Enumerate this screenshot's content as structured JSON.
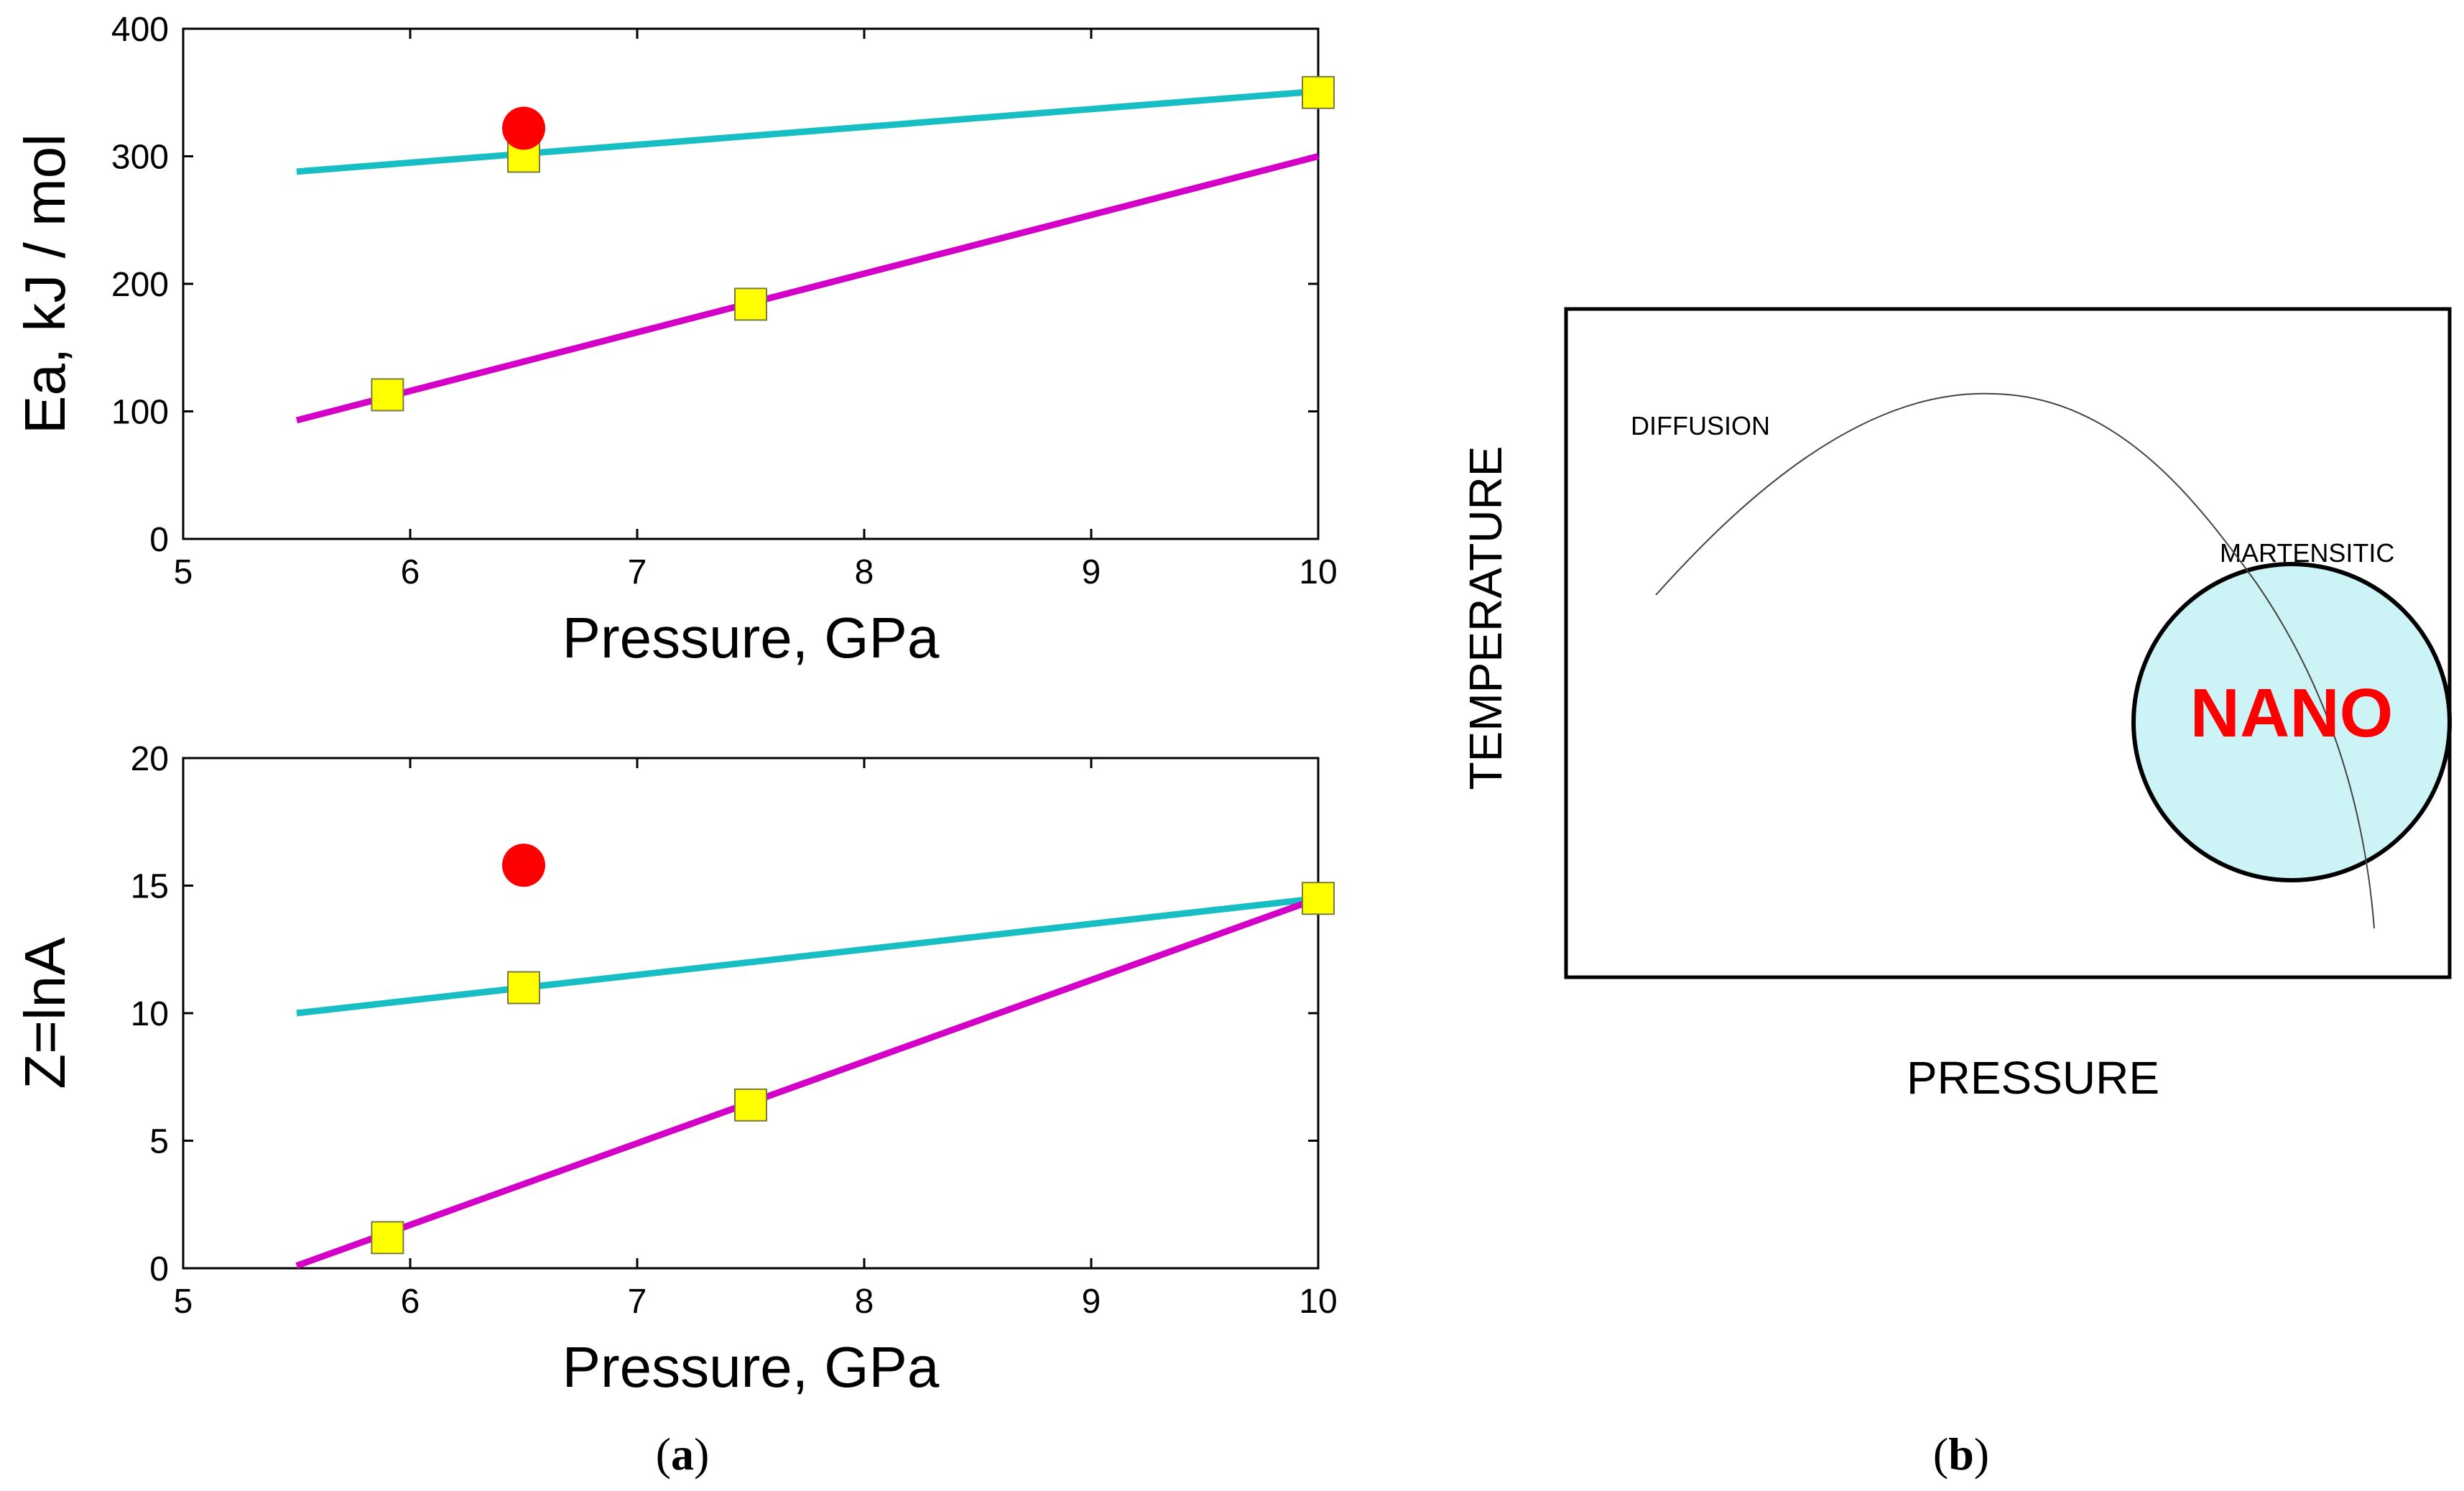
{
  "chart_data": [
    {
      "type": "scatter",
      "xlabel": "Pressure, GPa",
      "ylabel": "Ea, kJ / mol",
      "xlim": [
        5,
        10
      ],
      "ylim": [
        0,
        400
      ],
      "xticks": [
        "5",
        "6",
        "7",
        "8",
        "9",
        "10"
      ],
      "yticks": [
        "0",
        "100",
        "200",
        "300",
        "400"
      ],
      "series": [
        {
          "name": "cyan-fit",
          "kind": "line",
          "color": "#17BFC4",
          "x": [
            5.5,
            10
          ],
          "y": [
            288,
            351
          ]
        },
        {
          "name": "magenta-fit",
          "kind": "line",
          "color": "#D400C8",
          "x": [
            5.5,
            10
          ],
          "y": [
            93,
            300
          ]
        },
        {
          "name": "yellow-squares",
          "kind": "square",
          "color": "#FFFF00",
          "x": [
            5.9,
            6.5,
            7.5,
            10
          ],
          "y": [
            113,
            300,
            184,
            350
          ]
        },
        {
          "name": "red-circle",
          "kind": "circle",
          "color": "#FF0000",
          "x": [
            6.5
          ],
          "y": [
            322
          ]
        }
      ]
    },
    {
      "type": "scatter",
      "xlabel": "Pressure, GPa",
      "ylabel": "Z=lnA",
      "xlim": [
        5,
        10
      ],
      "ylim": [
        0,
        20
      ],
      "xticks": [
        "5",
        "6",
        "7",
        "8",
        "9",
        "10"
      ],
      "yticks": [
        "0",
        "5",
        "10",
        "15",
        "20"
      ],
      "series": [
        {
          "name": "cyan-fit",
          "kind": "line",
          "color": "#17BFC4",
          "x": [
            5.5,
            10
          ],
          "y": [
            10,
            14.5
          ]
        },
        {
          "name": "magenta-fit",
          "kind": "line",
          "color": "#D400C8",
          "x": [
            5.5,
            10
          ],
          "y": [
            0.1,
            14.5
          ]
        },
        {
          "name": "yellow-squares",
          "kind": "square",
          "color": "#FFFF00",
          "x": [
            5.9,
            6.5,
            7.5,
            10
          ],
          "y": [
            1.2,
            11,
            6.4,
            14.5
          ]
        },
        {
          "name": "red-circle",
          "kind": "circle",
          "color": "#FF0000",
          "x": [
            6.5
          ],
          "y": [
            15.8
          ]
        }
      ]
    }
  ],
  "diagram": {
    "xlabel": "PRESSURE",
    "ylabel": "TEMPERATURE",
    "label_diffusion": "DIFFUSION",
    "label_martensitic": "MARTENSITIC",
    "label_nano": "NANO"
  },
  "captions": {
    "a": "(a)",
    "b": "(b)"
  }
}
